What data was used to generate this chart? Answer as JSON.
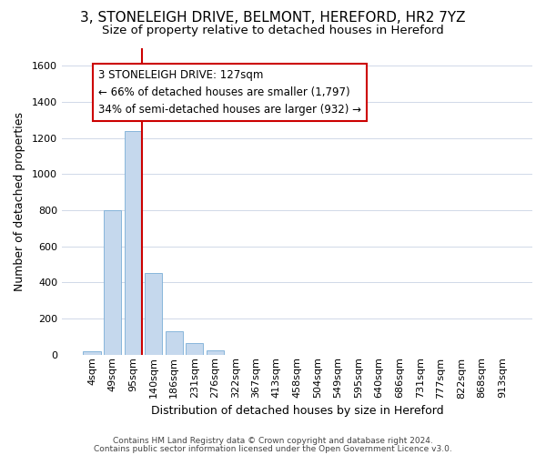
{
  "title_line1": "3, STONELEIGH DRIVE, BELMONT, HEREFORD, HR2 7YZ",
  "title_line2": "Size of property relative to detached houses in Hereford",
  "xlabel": "Distribution of detached houses by size in Hereford",
  "ylabel": "Number of detached properties",
  "footer_line1": "Contains HM Land Registry data © Crown copyright and database right 2024.",
  "footer_line2": "Contains public sector information licensed under the Open Government Licence v3.0.",
  "categories": [
    "4sqm",
    "49sqm",
    "95sqm",
    "140sqm",
    "186sqm",
    "231sqm",
    "276sqm",
    "322sqm",
    "367sqm",
    "413sqm",
    "458sqm",
    "504sqm",
    "549sqm",
    "595sqm",
    "640sqm",
    "686sqm",
    "731sqm",
    "777sqm",
    "822sqm",
    "868sqm",
    "913sqm"
  ],
  "values": [
    20,
    800,
    1240,
    450,
    130,
    65,
    25,
    0,
    0,
    0,
    0,
    0,
    0,
    0,
    0,
    0,
    0,
    0,
    0,
    0,
    0
  ],
  "bar_color": "#c5d8ed",
  "bar_edge_color": "#7aaed6",
  "vline_color": "#cc0000",
  "vline_index": 2,
  "annotation_line1": "3 STONELEIGH DRIVE: 127sqm",
  "annotation_line2": "← 66% of detached houses are smaller (1,797)",
  "annotation_line3": "34% of semi-detached houses are larger (932) →",
  "ylim_max": 1700,
  "yticks": [
    0,
    200,
    400,
    600,
    800,
    1000,
    1200,
    1400,
    1600
  ],
  "bg_color": "#ffffff",
  "plot_bg_color": "#ffffff",
  "grid_color": "#d0d8e8",
  "title_fontsize": 11,
  "subtitle_fontsize": 9.5,
  "axis_label_fontsize": 9,
  "tick_fontsize": 8,
  "annotation_fontsize": 8.5,
  "footer_fontsize": 6.5
}
